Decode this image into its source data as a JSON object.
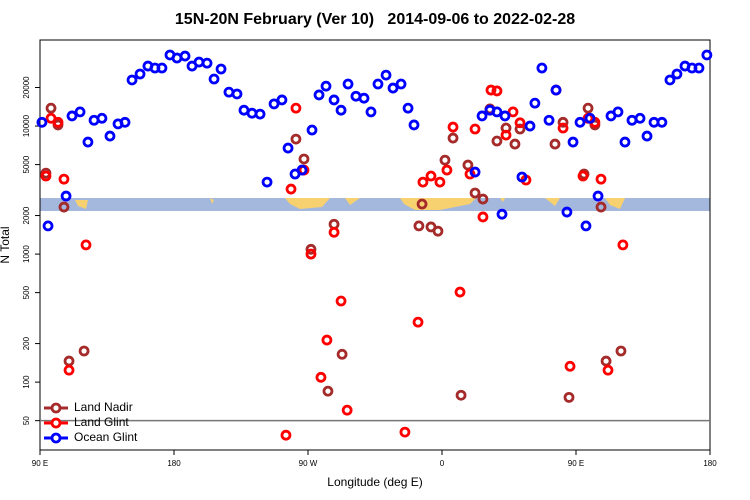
{
  "chart_data": {
    "type": "scatter",
    "title": "15N-20N February (Ver 10)   2014-09-06 to 2022-02-28",
    "xlabel": "Longitude (deg E)",
    "ylabel": "N Total",
    "xlim": [
      90,
      540
    ],
    "xticks": [
      {
        "value": 90,
        "label": "90 E"
      },
      180,
      {
        "value": 270,
        "label": "90 W"
      },
      {
        "value": 360,
        "label": "0"
      },
      {
        "value": 450,
        "label": "90 E"
      },
      {
        "value": 540,
        "label": "180"
      }
    ],
    "ylim": [
      29.5,
      47000
    ],
    "yscale": "log",
    "yticks": [
      50,
      100,
      200,
      500,
      1000,
      2000,
      5000,
      10000,
      20000
    ],
    "reference_line": 50,
    "legend": "lower left",
    "series": [
      {
        "name": "Land Nadir",
        "color": "#a52a2a",
        "x": [
          94,
          97.4,
          102.1,
          106.1,
          109.5,
          119.6,
          261.9,
          267.3,
          272,
          287.5,
          292.9,
          283.4,
          344.5,
          352.6,
          357.3,
          362,
          367.4,
          346.6,
          372.8,
          377.4,
          382.2,
          387.5,
          392.2,
          396.9,
          403,
          409,
          412.4,
          435.9,
          441.3,
          445.3,
          455.4,
          458.1,
          462.7,
          466.8,
          470.2,
          480.2
        ],
        "values": [
          4290,
          13800,
          10200,
          2330,
          146,
          175,
          7910,
          5530,
          1090,
          1710,
          165,
          85,
          1660,
          1630,
          1510,
          5420,
          8060,
          2460,
          79,
          4960,
          3000,
          2690,
          13600,
          7640,
          9650,
          7230,
          9480,
          7230,
          10700,
          76,
          4220,
          13800,
          10200,
          2330,
          146,
          175
        ]
      },
      {
        "name": "Land Glint",
        "color": "#ff0000",
        "x": [
          94,
          97.4,
          102.1,
          106.1,
          109.5,
          120.9,
          258.6,
          261.9,
          267.3,
          272,
          278.7,
          282.7,
          287.5,
          292.2,
          296.3,
          255.2,
          335.1,
          343.9,
          347.2,
          352.6,
          358.6,
          363.3,
          367.4,
          372.1,
          378.8,
          382.2,
          387.5,
          392.9,
          396.9,
          403,
          407.7,
          412.4,
          416.4,
          436.6,
          441.3,
          446,
          454.7,
          458.1,
          462.7,
          466.8,
          471.5,
          481.5
        ],
        "values": [
          4070,
          11500,
          10700,
          3850,
          124,
          1180,
          3220,
          13800,
          4530,
          1000,
          109,
          213,
          1480,
          430,
          60.4,
          38.5,
          40.7,
          294,
          3650,
          4070,
          3650,
          4530,
          9820,
          505,
          4220,
          9480,
          1950,
          19100,
          18800,
          8500,
          12900,
          10600,
          3790,
          19100,
          9650,
          133,
          4070,
          11500,
          10700,
          3850,
          124,
          1180
        ]
      },
      {
        "name": "Ocean Glint",
        "color": "#0000ff",
        "x": [
          91.3,
          95.4,
          107.5,
          111.5,
          116.9,
          122.2,
          126.3,
          131.6,
          137,
          142.4,
          147.1,
          151.8,
          157.2,
          162.5,
          167.2,
          171.9,
          177.3,
          182,
          187.4,
          192.1,
          196.8,
          202.2,
          206.9,
          211.6,
          216.9,
          222.3,
          227,
          232.4,
          237.8,
          242.5,
          247.2,
          252.5,
          256.6,
          261.3,
          266,
          272.7,
          277.4,
          282.1,
          287.5,
          292.2,
          296.9,
          302.2,
          307.6,
          312.3,
          317,
          322.4,
          327.1,
          332.5,
          337.2,
          341.2,
          382.2,
          386.9,
          392.2,
          396.9,
          400.3,
          402.3,
          413.7,
          419.1,
          422.4,
          427.1,
          431.9,
          436.6,
          443.9,
          448,
          452.7,
          456.7,
          459.4,
          464.8,
          473.5,
          478.2,
          482.9,
          487.6,
          493,
          497.7,
          502.4,
          507.7,
          513.1,
          517.8,
          523.2,
          527.9,
          532.6,
          537.9
        ],
        "values": [
          10700,
          1660,
          2840,
          12000,
          12900,
          7500,
          11100,
          11500,
          8350,
          10400,
          10700,
          22900,
          25500,
          29400,
          28400,
          28400,
          35900,
          34000,
          35200,
          29400,
          31600,
          31000,
          23300,
          27900,
          18400,
          17800,
          13300,
          12600,
          12400,
          3650,
          14900,
          16000,
          6730,
          4220,
          4530,
          9310,
          17500,
          20500,
          16000,
          13300,
          21300,
          17100,
          16500,
          12900,
          21300,
          25000,
          19800,
          21300,
          13800,
          10200,
          4370,
          12000,
          13300,
          12900,
          2050,
          12000,
          4000,
          10000,
          15100,
          28400,
          11100,
          19100,
          2130,
          7500,
          10700,
          1660,
          11500,
          2840,
          12000,
          12900,
          7500,
          11100,
          11500,
          8350,
          10700,
          10700,
          22900,
          25500,
          29400,
          28400,
          28400,
          35900
        ]
      }
    ]
  }
}
